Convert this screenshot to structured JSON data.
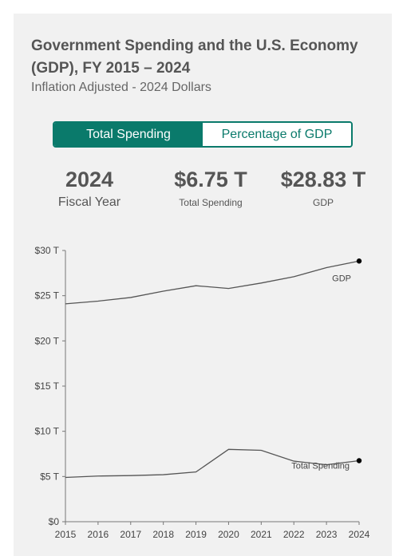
{
  "header": {
    "title": "Government Spending and the U.S. Economy (GDP), FY 2015 – 2024",
    "subtitle": "Inflation Adjusted - 2024 Dollars"
  },
  "toggle": {
    "total_spending_label": "Total Spending",
    "percentage_gdp_label": "Percentage of GDP",
    "active": "Total Spending"
  },
  "stats": {
    "year": {
      "value": "2024",
      "label": "Fiscal Year"
    },
    "spending": {
      "value": "$6.75 T",
      "label": "Total Spending"
    },
    "gdp": {
      "value": "$28.83 T",
      "label": "GDP"
    }
  },
  "colors": {
    "accent": "#0a7a6b",
    "line": "#555555",
    "endpoint": "#000000"
  },
  "chart_data": {
    "type": "line",
    "x": [
      2015,
      2016,
      2017,
      2018,
      2019,
      2020,
      2021,
      2022,
      2023,
      2024
    ],
    "series": [
      {
        "name": "GDP",
        "values": [
          24.1,
          24.4,
          24.8,
          25.5,
          26.1,
          25.8,
          26.4,
          27.1,
          28.1,
          28.83
        ]
      },
      {
        "name": "Total Spending",
        "values": [
          4.9,
          5.05,
          5.1,
          5.2,
          5.5,
          8.0,
          7.9,
          6.7,
          6.3,
          6.75
        ]
      }
    ],
    "yticks": [
      "$0",
      "$5 T",
      "$10 T",
      "$15 T",
      "$20 T",
      "$25 T",
      "$30 T"
    ],
    "ytick_values": [
      0,
      5,
      10,
      15,
      20,
      25,
      30
    ],
    "ylim": [
      0,
      30
    ],
    "xlim": [
      2015,
      2024
    ],
    "grid": false
  }
}
